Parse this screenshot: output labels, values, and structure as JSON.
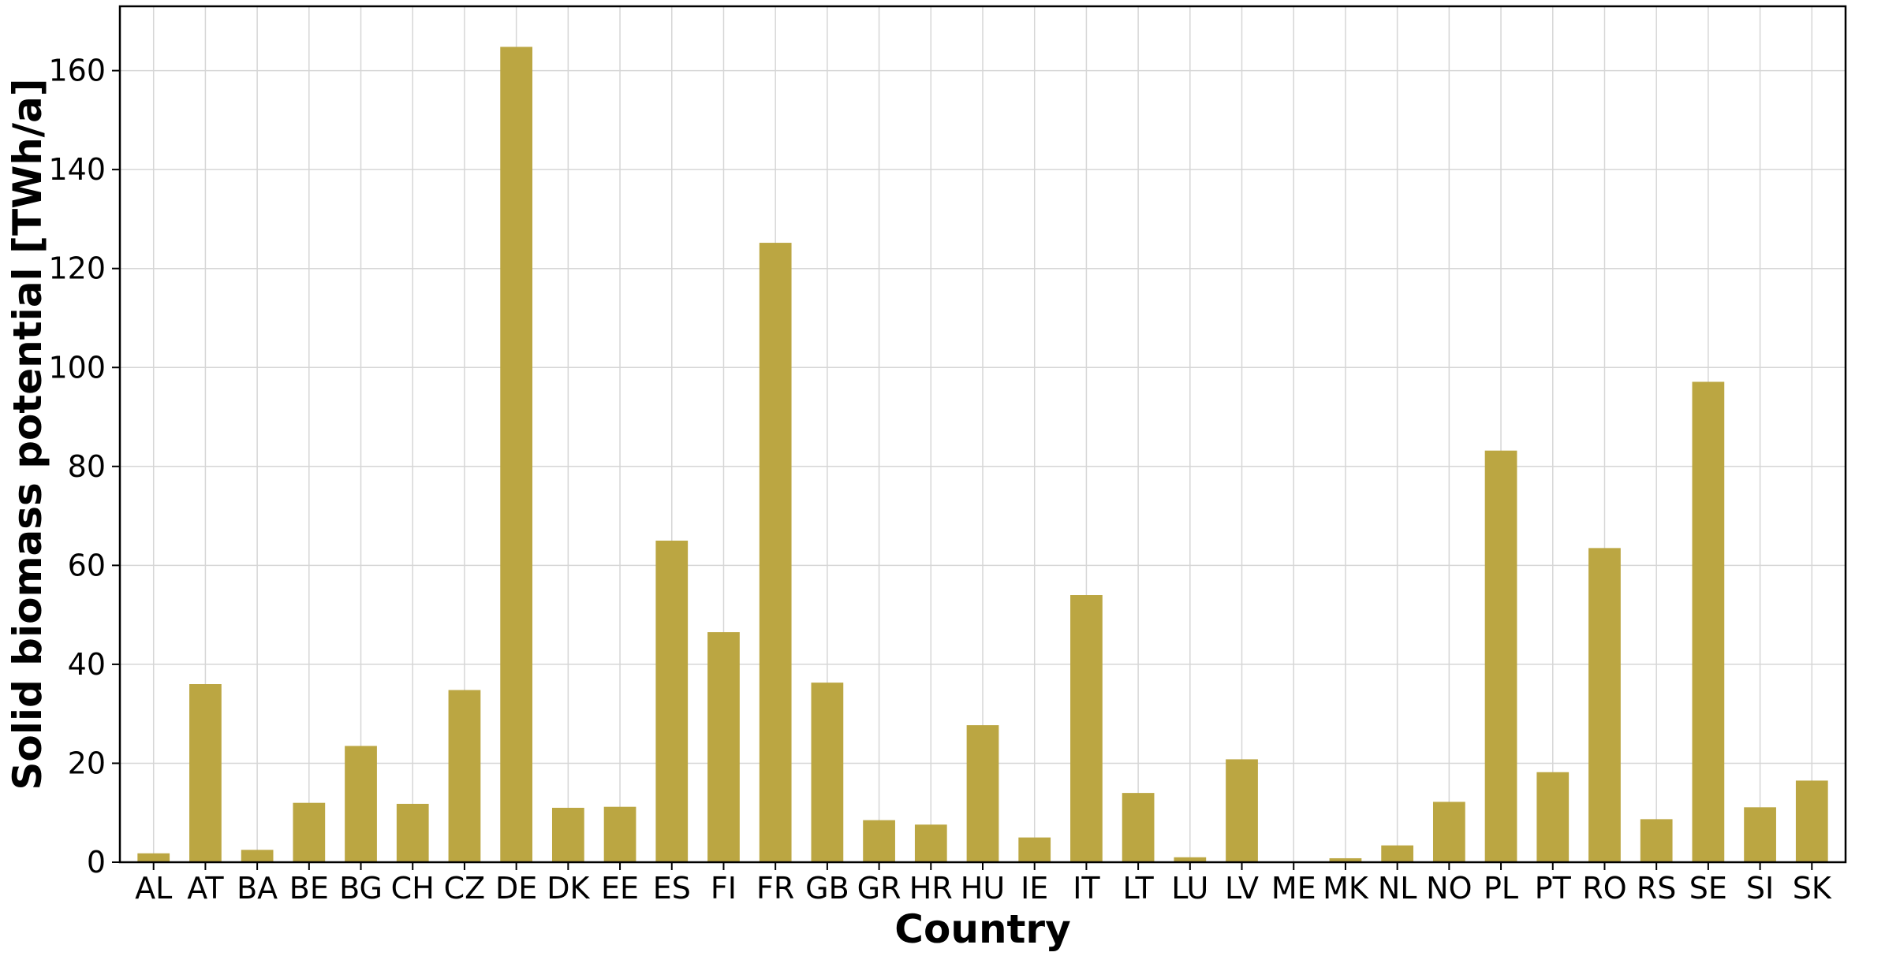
{
  "chart_data": {
    "type": "bar",
    "title": "",
    "xlabel": "Country",
    "ylabel": "Solid biomass potential [TWh/a]",
    "ylim": [
      0,
      173
    ],
    "yticks": [
      0,
      20,
      40,
      60,
      80,
      100,
      120,
      140,
      160
    ],
    "grid": true,
    "bar_color": "#bba642",
    "categories": [
      "AL",
      "AT",
      "BA",
      "BE",
      "BG",
      "CH",
      "CZ",
      "DE",
      "DK",
      "EE",
      "ES",
      "FI",
      "FR",
      "GB",
      "GR",
      "HR",
      "HU",
      "IE",
      "IT",
      "LT",
      "LU",
      "LV",
      "ME",
      "MK",
      "NL",
      "NO",
      "PL",
      "PT",
      "RO",
      "RS",
      "SE",
      "SI",
      "SK"
    ],
    "values": [
      1.8,
      36.0,
      2.5,
      12.0,
      23.5,
      11.8,
      34.8,
      164.8,
      11.0,
      11.2,
      65.0,
      46.5,
      125.2,
      36.3,
      8.5,
      7.6,
      27.7,
      5.0,
      54.0,
      14.0,
      1.0,
      20.8,
      0.0,
      0.8,
      3.4,
      12.2,
      83.2,
      18.2,
      63.5,
      8.7,
      97.1,
      11.1,
      16.5
    ]
  }
}
